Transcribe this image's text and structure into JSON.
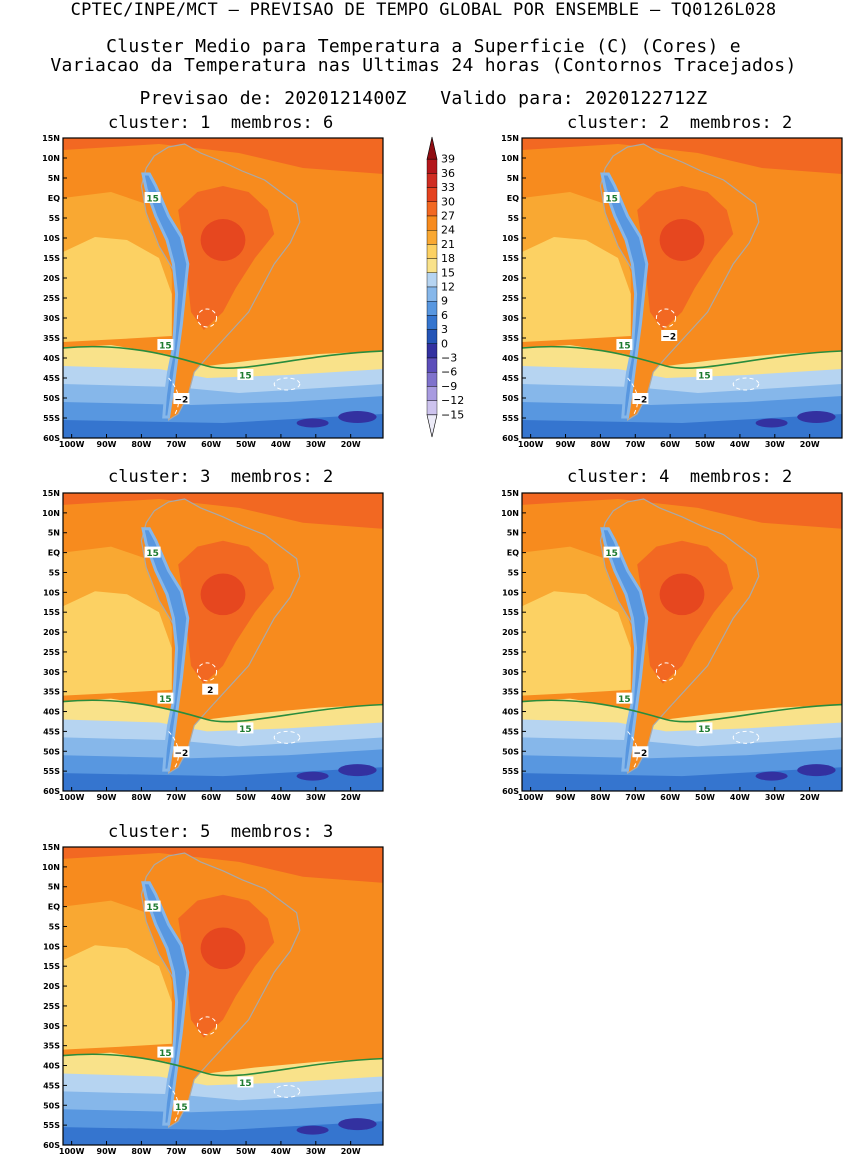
{
  "header": {
    "line1": "CPTEC/INPE/MCT – PREVISAO DE TEMPO GLOBAL POR ENSEMBLE – TQ0126L028",
    "line2": "Cluster Medio para Temperatura a Superficie (C) (Cores) e",
    "line3": "Variacao da Temperatura nas Ultimas 24 horas (Contornos Tracejados)",
    "line4": "Previsao de: 2020121400Z   Valido para: 2020122712Z"
  },
  "lat_labels": [
    "15N",
    "10N",
    "5N",
    "EQ",
    "5S",
    "10S",
    "15S",
    "20S",
    "25S",
    "30S",
    "35S",
    "40S",
    "45S",
    "50S",
    "55S",
    "60S"
  ],
  "lon_labels": [
    "100W",
    "90W",
    "80W",
    "70W",
    "60W",
    "50W",
    "40W",
    "30W",
    "20W"
  ],
  "colorbar": {
    "labels": [
      "39",
      "36",
      "33",
      "30",
      "27",
      "24",
      "21",
      "18",
      "15",
      "12",
      "9",
      "6",
      "3",
      "0",
      "−3",
      "−6",
      "−9",
      "−12",
      "−15"
    ],
    "colors": [
      "#8f0d12",
      "#b4161b",
      "#cf2d22",
      "#e4421f",
      "#f26822",
      "#f78b1e",
      "#f9a832",
      "#fcd163",
      "#f9e28a",
      "#b6d4f1",
      "#86b7ea",
      "#5897e0",
      "#3575cf",
      "#2454b6",
      "#3331a0",
      "#5c4eba",
      "#7f72cc",
      "#a89be0",
      "#cdc3ee",
      "#ecebf8"
    ]
  },
  "panels": [
    {
      "cluster_label": "cluster:",
      "cluster": "1",
      "membros_label": "membros:",
      "membros": "6",
      "contour_labels": [
        "15",
        "15",
        "15",
        "−2"
      ]
    },
    {
      "cluster_label": "cluster:",
      "cluster": "2",
      "membros_label": "membros:",
      "membros": "2",
      "contour_labels": [
        "15",
        "15",
        "15",
        "−2",
        "−2"
      ]
    },
    {
      "cluster_label": "cluster:",
      "cluster": "3",
      "membros_label": "membros:",
      "membros": "2",
      "contour_labels": [
        "15",
        "15",
        "15",
        "−2",
        "2"
      ]
    },
    {
      "cluster_label": "cluster:",
      "cluster": "4",
      "membros_label": "membros:",
      "membros": "2",
      "contour_labels": [
        "15",
        "15",
        "15",
        "−2"
      ]
    },
    {
      "cluster_label": "cluster:",
      "cluster": "5",
      "membros_label": "membros:",
      "membros": "3",
      "contour_labels": [
        "15",
        "15",
        "15",
        "15"
      ]
    }
  ]
}
